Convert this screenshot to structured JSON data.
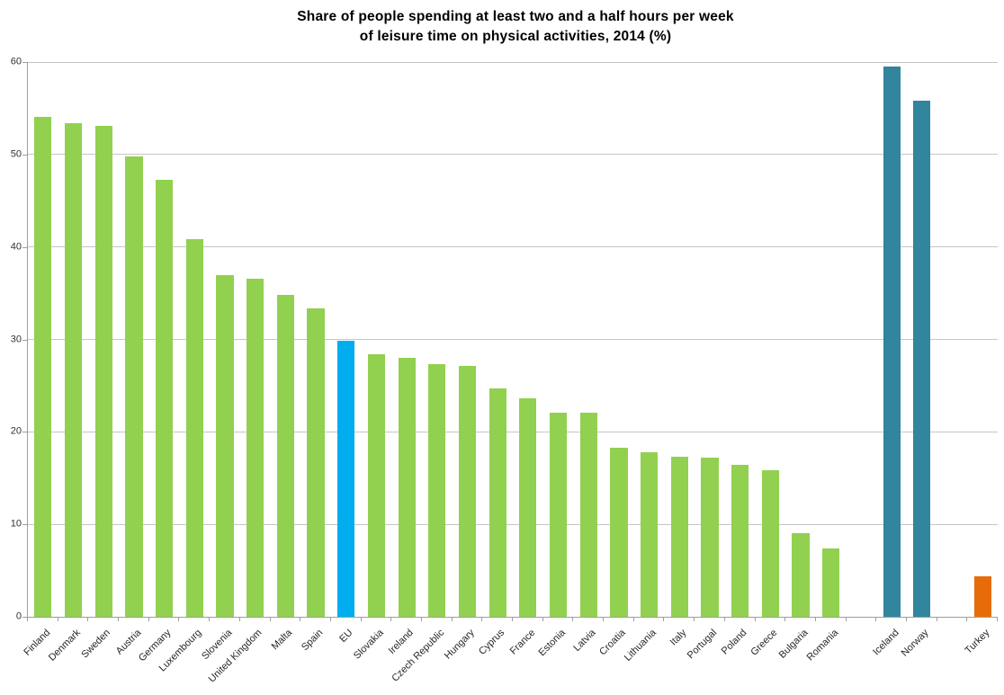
{
  "title": {
    "line1": "Share of people spending at least two and a half hours per week",
    "line2": "of leisure time on physical activities, 2014 (%)"
  },
  "chart_data": {
    "type": "bar",
    "title": "Share of people spending at least two and a half hours per week of leisure time on physical activities, 2014 (%)",
    "xlabel": "",
    "ylabel": "",
    "ylim": [
      0,
      60
    ],
    "yticks": [
      0,
      10,
      20,
      30,
      40,
      50,
      60
    ],
    "grid": true,
    "legend": false,
    "bar_colors": {
      "eu_member_state": "#92D050",
      "eu_average": "#00AEEF",
      "efta_country": "#31859C",
      "candidate_country": "#E66C0A"
    },
    "axis_color": "#9e9e9e",
    "gridline_color": "#c6c6c6",
    "bars": [
      {
        "label": "Finland",
        "value": 54.1,
        "color": "#92D050"
      },
      {
        "label": "Denmark",
        "value": 53.4,
        "color": "#92D050"
      },
      {
        "label": "Sweden",
        "value": 53.1,
        "color": "#92D050"
      },
      {
        "label": "Austria",
        "value": 49.8,
        "color": "#92D050"
      },
      {
        "label": "Germany",
        "value": 47.3,
        "color": "#92D050"
      },
      {
        "label": "Luxembourg",
        "value": 40.8,
        "color": "#92D050"
      },
      {
        "label": "Slovenia",
        "value": 37.0,
        "color": "#92D050"
      },
      {
        "label": "United Kingdom",
        "value": 36.6,
        "color": "#92D050"
      },
      {
        "label": "Malta",
        "value": 34.8,
        "color": "#92D050"
      },
      {
        "label": "Spain",
        "value": 33.4,
        "color": "#92D050"
      },
      {
        "label": "EU",
        "value": 29.9,
        "color": "#00AEEF"
      },
      {
        "label": "Slovakia",
        "value": 28.4,
        "color": "#92D050"
      },
      {
        "label": "Ireland",
        "value": 28.0,
        "color": "#92D050"
      },
      {
        "label": "Czech Republic",
        "value": 27.3,
        "color": "#92D050"
      },
      {
        "label": "Hungary",
        "value": 27.1,
        "color": "#92D050"
      },
      {
        "label": "Cyprus",
        "value": 24.7,
        "color": "#92D050"
      },
      {
        "label": "France",
        "value": 23.6,
        "color": "#92D050"
      },
      {
        "label": "Estonia",
        "value": 22.1,
        "color": "#92D050"
      },
      {
        "label": "Latvia",
        "value": 22.1,
        "color": "#92D050"
      },
      {
        "label": "Croatia",
        "value": 18.3,
        "color": "#92D050"
      },
      {
        "label": "Lithuania",
        "value": 17.8,
        "color": "#92D050"
      },
      {
        "label": "Italy",
        "value": 17.3,
        "color": "#92D050"
      },
      {
        "label": "Portugal",
        "value": 17.2,
        "color": "#92D050"
      },
      {
        "label": "Poland",
        "value": 16.4,
        "color": "#92D050"
      },
      {
        "label": "Greece",
        "value": 15.9,
        "color": "#92D050"
      },
      {
        "label": "Bulgaria",
        "value": 9.0,
        "color": "#92D050"
      },
      {
        "label": "Romania",
        "value": 7.4,
        "color": "#92D050"
      },
      {
        "label": "Iceland",
        "value": 59.5,
        "color": "#31859C"
      },
      {
        "label": "Norway",
        "value": 55.8,
        "color": "#31859C"
      },
      {
        "label": "Turkey",
        "value": 4.4,
        "color": "#E66C0A"
      }
    ],
    "gap_after_labels": [
      "Romania",
      "Norway"
    ]
  }
}
